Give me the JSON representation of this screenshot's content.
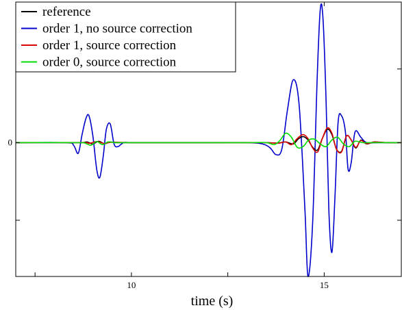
{
  "chart_data": {
    "type": "line",
    "title": "",
    "xlabel": "time (s)",
    "ylabel": "",
    "xlim": [
      7,
      17
    ],
    "ylim": [
      -1.0,
      1.05
    ],
    "x_ticks": [
      {
        "value": 10,
        "label": "10"
      },
      {
        "value": 15,
        "label": "15"
      }
    ],
    "x_minor_ticks": [
      7.5,
      10,
      12.5,
      15
    ],
    "y_ticks": [
      {
        "value": 0,
        "label": "0"
      }
    ],
    "y_minor_ticks": [
      0.55,
      0,
      -0.58
    ],
    "grid": false,
    "legend_position": "top-left",
    "series": [
      {
        "name": "reference",
        "color": "#000000",
        "x": [
          7,
          8,
          8.7,
          8.85,
          9,
          9.15,
          9.3,
          9.45,
          9.6,
          10,
          11,
          12,
          13,
          13.5,
          13.8,
          14.0,
          14.2,
          14.32,
          14.45,
          14.58,
          14.7,
          14.83,
          14.95,
          15.08,
          15.2,
          15.32,
          15.45,
          15.58,
          15.7,
          15.82,
          15.95,
          16.1,
          16.3,
          16.6,
          17
        ],
        "y": [
          0,
          0,
          0,
          0.005,
          -0.01,
          0.01,
          -0.008,
          0.004,
          0,
          0,
          0,
          0,
          0,
          0,
          -0.003,
          0.005,
          -0.01,
          0.025,
          0.045,
          0.02,
          -0.035,
          -0.055,
          0.03,
          0.1,
          0.06,
          -0.05,
          -0.065,
          0.05,
          0.02,
          -0.04,
          0.018,
          -0.01,
          0.005,
          0,
          0
        ]
      },
      {
        "name": "order 1, no source correction",
        "color": "#0000cc",
        "x": [
          7,
          8.3,
          8.5,
          8.62,
          8.72,
          8.82,
          8.9,
          9.0,
          9.1,
          9.18,
          9.27,
          9.35,
          9.45,
          9.55,
          9.65,
          9.8,
          10,
          11,
          12,
          13,
          13.4,
          13.6,
          13.75,
          13.9,
          14.05,
          14.2,
          14.35,
          14.5,
          14.58,
          14.7,
          14.82,
          14.9,
          14.97,
          15.05,
          15.12,
          15.2,
          15.28,
          15.36,
          15.45,
          15.55,
          15.62,
          15.7,
          15.8,
          15.95,
          16.1,
          16.4,
          17
        ],
        "y": [
          0,
          0,
          -0.02,
          -0.08,
          0.06,
          0.18,
          0.2,
          0.05,
          -0.2,
          -0.26,
          -0.1,
          0.1,
          0.14,
          -0.01,
          -0.03,
          0,
          0,
          0,
          0,
          0,
          -0.01,
          -0.04,
          -0.09,
          -0.05,
          0.25,
          0.47,
          0.28,
          -0.5,
          -1.0,
          -0.6,
          0.5,
          1.0,
          0.92,
          0.3,
          -0.5,
          -0.82,
          -0.4,
          0.15,
          0.2,
          0.08,
          -0.2,
          -0.15,
          0.08,
          0.04,
          0,
          0,
          0
        ]
      },
      {
        "name": "order 1, source correction",
        "color": "#dd0000",
        "x": [
          7,
          8.7,
          8.9,
          9.1,
          9.3,
          9.5,
          10,
          11,
          12,
          13,
          13.5,
          13.8,
          14.0,
          14.15,
          14.3,
          14.45,
          14.58,
          14.7,
          14.83,
          14.95,
          15.08,
          15.2,
          15.32,
          15.45,
          15.58,
          15.7,
          15.82,
          15.95,
          16.1,
          16.3,
          16.6,
          17
        ],
        "y": [
          0,
          0,
          -0.006,
          0.008,
          -0.006,
          0.003,
          0,
          0,
          0,
          0,
          0,
          -0.005,
          0.005,
          -0.015,
          0.03,
          0.06,
          0.03,
          -0.04,
          -0.07,
          0.03,
          0.11,
          0.07,
          -0.05,
          -0.07,
          0.05,
          0.02,
          -0.035,
          0.015,
          -0.008,
          0.004,
          0,
          0
        ]
      },
      {
        "name": "order 0, source correction",
        "color": "#00dd00",
        "x": [
          7,
          8.6,
          8.8,
          8.95,
          9.1,
          9.25,
          9.4,
          9.6,
          10,
          11,
          12,
          13,
          13.5,
          13.7,
          13.85,
          14.0,
          14.15,
          14.3,
          14.45,
          14.6,
          14.75,
          14.9,
          15.05,
          15.2,
          15.35,
          15.5,
          15.65,
          15.8,
          16,
          16.3,
          17
        ],
        "y": [
          0,
          0,
          -0.005,
          -0.02,
          0.008,
          -0.015,
          0.005,
          0,
          0,
          0,
          0,
          0,
          0,
          -0.015,
          0.015,
          0.07,
          0.04,
          -0.035,
          -0.03,
          0.02,
          0.025,
          -0.01,
          -0.03,
          0.02,
          0.04,
          -0.01,
          -0.03,
          0.01,
          0,
          0,
          0
        ]
      }
    ]
  }
}
